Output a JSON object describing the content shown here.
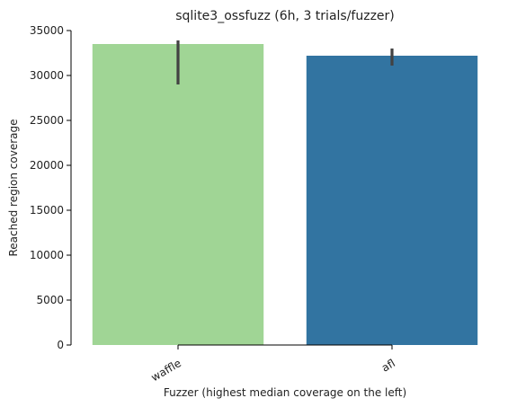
{
  "chart_data": {
    "type": "bar",
    "title": "sqlite3_ossfuzz (6h, 3 trials/fuzzer)",
    "xlabel": "Fuzzer (highest median coverage on the left)",
    "ylabel": "Reached region coverage",
    "categories": [
      "waffle",
      "afl"
    ],
    "values": [
      33500,
      32200
    ],
    "error_bars": [
      {
        "low": 29000,
        "high": 33900
      },
      {
        "low": 31100,
        "high": 33000
      }
    ],
    "ylim": [
      0,
      35000
    ],
    "yticks": [
      "0",
      "5000",
      "10000",
      "15000",
      "20000",
      "25000",
      "30000",
      "35000"
    ],
    "grid": false,
    "colors": {
      "bars": [
        "#a0d595",
        "#3274a1"
      ],
      "error_bar": "#424242",
      "axis": "#000000"
    }
  }
}
